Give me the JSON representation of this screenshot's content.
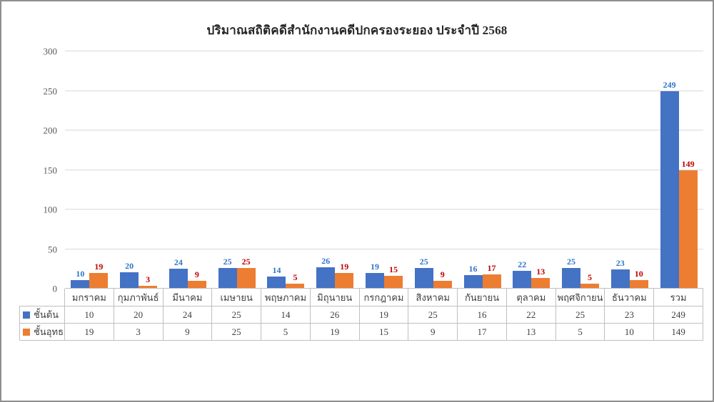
{
  "chart_data": {
    "type": "bar",
    "title": "ปริมาณสถิติคดีสำนักงานคดีปกครองระยอง ประจำปี 2568",
    "categories": [
      "มกราคม",
      "กุมภาพันธ์",
      "มีนาคม",
      "เมษายน",
      "พฤษภาคม",
      "มิถุนายน",
      "กรกฎาคม",
      "สิงหาคม",
      "กันยายน",
      "ตุลาคม",
      "พฤศจิกายน",
      "ธันวาคม",
      "รวม"
    ],
    "series": [
      {
        "name": "ชั้นต้น",
        "color": "#4472C4",
        "label_color": "#2E75C6",
        "values": [
          10,
          20,
          24,
          25,
          14,
          26,
          19,
          25,
          16,
          22,
          25,
          23,
          249
        ]
      },
      {
        "name": "ชั้นอุทธรณ์",
        "color": "#ED7D31",
        "label_color": "#C00000",
        "values": [
          19,
          3,
          9,
          25,
          5,
          19,
          15,
          9,
          17,
          13,
          5,
          10,
          149
        ]
      }
    ],
    "ylim": [
      0,
      300
    ],
    "yticks": [
      0,
      50,
      100,
      150,
      200,
      250,
      300
    ],
    "grid": true,
    "data_table": true,
    "legend_position": "data-table-left"
  }
}
